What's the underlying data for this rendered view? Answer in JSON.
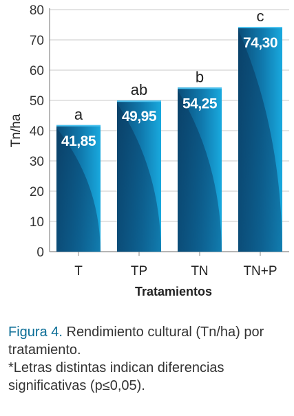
{
  "chart_data": {
    "type": "bar",
    "categories": [
      "T",
      "TP",
      "TN",
      "TN+P"
    ],
    "values": [
      41.85,
      49.95,
      54.25,
      74.3
    ],
    "value_labels": [
      "41,85",
      "49,95",
      "54,25",
      "74,30"
    ],
    "significance_letters": [
      "a",
      "ab",
      "b",
      "c"
    ],
    "xlabel": "Tratamientos",
    "ylabel": "Tn/ha",
    "ylim": [
      0,
      80
    ],
    "yticks": [
      0,
      10,
      20,
      30,
      40,
      50,
      60,
      70,
      80
    ],
    "grid": true,
    "legend": "none",
    "colors": {
      "bar_light": "#19a9de",
      "bar_dark": "#0b4d78",
      "value_label": "#ffffff",
      "grid": "#c8c8c8",
      "axis": "#888888"
    }
  },
  "caption": {
    "label": "Figura 4.",
    "text": " Rendimiento cultural (Tn/ha) por tratamiento.",
    "note": "*Letras distintas indican diferencias significativas (p≤0,05)."
  }
}
